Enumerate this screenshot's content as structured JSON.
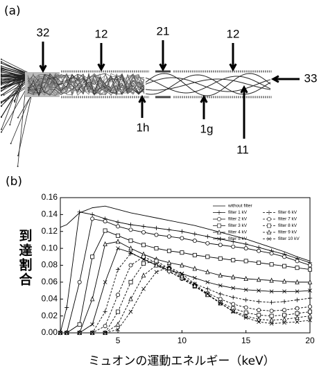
{
  "panel_a": {
    "label": "(a)",
    "callouts": [
      "32",
      "12",
      "21",
      "12",
      "33",
      "1h",
      "1g",
      "11"
    ]
  },
  "panel_b": {
    "label": "(b)"
  },
  "chart_data": {
    "type": "line",
    "xlabel": "ミュオンの運動エネルギー（keV）",
    "ylabel": "到達割合",
    "x": [
      0.5,
      1,
      2,
      3,
      4,
      5,
      6,
      7,
      8,
      9,
      10,
      11,
      12,
      13,
      14,
      15,
      16,
      17,
      18,
      19,
      20
    ],
    "xlim": [
      0.5,
      20
    ],
    "xticks": [
      5,
      10,
      15,
      20
    ],
    "ylim": [
      0,
      0.16
    ],
    "yticks": [
      {
        "value": 0,
        "label": "0.00"
      },
      0.02,
      0.04,
      0.06,
      0.08,
      {
        "value": 0.1,
        "label": "0.10"
      },
      0.12,
      0.14,
      0.16
    ],
    "legend": "upper right",
    "series": [
      {
        "name": "without filter",
        "color": "#000000",
        "marker": "none",
        "dash": false,
        "values": [
          0.125,
          0.128,
          0.142,
          0.148,
          0.15,
          0.146,
          0.142,
          0.139,
          0.136,
          0.133,
          0.13,
          0.127,
          0.123,
          0.119,
          0.115,
          0.111,
          0.106,
          0.101,
          0.096,
          0.09,
          0.085
        ]
      },
      {
        "name": "filter 1 kV",
        "color": "#000000",
        "marker": "plus",
        "dash": false,
        "values": [
          0,
          0.03,
          0.143,
          0.14,
          0.135,
          0.131,
          0.128,
          0.126,
          0.124,
          0.122,
          0.12,
          0.117,
          0.114,
          0.111,
          0.108,
          0.105,
          0.101,
          0.097,
          0.093,
          0.088,
          0.083
        ]
      },
      {
        "name": "filter 2 kV",
        "color": "#000000",
        "marker": "circle",
        "dash": false,
        "values": [
          0,
          0,
          0.06,
          0.135,
          0.132,
          0.126,
          0.122,
          0.119,
          0.116,
          0.114,
          0.112,
          0.109,
          0.106,
          0.104,
          0.102,
          0.1,
          0.097,
          0.094,
          0.09,
          0.085,
          0.08
        ]
      },
      {
        "name": "filter 3 kV",
        "color": "#000000",
        "marker": "square",
        "dash": false,
        "values": [
          0,
          0,
          0.01,
          0.09,
          0.121,
          0.115,
          0.109,
          0.104,
          0.1,
          0.097,
          0.095,
          0.092,
          0.09,
          0.088,
          0.086,
          0.085,
          0.083,
          0.081,
          0.079,
          0.077,
          0.075
        ]
      },
      {
        "name": "filter 4 kV",
        "color": "#000000",
        "marker": "triangle",
        "dash": false,
        "values": [
          0,
          0,
          0,
          0.04,
          0.105,
          0.108,
          0.1,
          0.093,
          0.087,
          0.083,
          0.08,
          0.076,
          0.072,
          0.068,
          0.066,
          0.064,
          0.063,
          0.062,
          0.061,
          0.06,
          0.06
        ]
      },
      {
        "name": "filter 5 kV",
        "color": "#000000",
        "marker": "x",
        "dash": false,
        "values": [
          0,
          0,
          0,
          0.01,
          0.06,
          0.1,
          0.095,
          0.087,
          0.08,
          0.074,
          0.07,
          0.065,
          0.06,
          0.056,
          0.053,
          0.051,
          0.05,
          0.049,
          0.049,
          0.049,
          0.05
        ]
      },
      {
        "name": "filter 6 kV",
        "color": "#000000",
        "marker": "plus",
        "dash": true,
        "values": [
          0,
          0,
          0,
          0,
          0.025,
          0.075,
          0.094,
          0.088,
          0.08,
          0.072,
          0.065,
          0.058,
          0.052,
          0.046,
          0.042,
          0.039,
          0.037,
          0.036,
          0.037,
          0.039,
          0.041
        ]
      },
      {
        "name": "filter 7 kV",
        "color": "#000000",
        "marker": "circle",
        "dash": true,
        "values": [
          0,
          0,
          0,
          0,
          0.008,
          0.045,
          0.08,
          0.09,
          0.083,
          0.073,
          0.064,
          0.055,
          0.047,
          0.04,
          0.034,
          0.03,
          0.027,
          0.026,
          0.027,
          0.029,
          0.031
        ]
      },
      {
        "name": "filter 8 kV",
        "color": "#000000",
        "marker": "square",
        "dash": true,
        "values": [
          0,
          0,
          0,
          0,
          0,
          0.025,
          0.06,
          0.082,
          0.085,
          0.076,
          0.065,
          0.055,
          0.045,
          0.036,
          0.029,
          0.024,
          0.021,
          0.02,
          0.021,
          0.023,
          0.025
        ]
      },
      {
        "name": "filter 9 kV",
        "color": "#000000",
        "marker": "triangle",
        "dash": true,
        "values": [
          0,
          0,
          0,
          0,
          0,
          0.01,
          0.04,
          0.068,
          0.08,
          0.077,
          0.067,
          0.056,
          0.045,
          0.035,
          0.026,
          0.02,
          0.016,
          0.015,
          0.016,
          0.018,
          0.02
        ]
      },
      {
        "name": "filter 10 kV",
        "color": "#000000",
        "marker": "x",
        "dash": true,
        "values": [
          0,
          0,
          0,
          0,
          0,
          0.004,
          0.025,
          0.052,
          0.072,
          0.078,
          0.07,
          0.058,
          0.046,
          0.035,
          0.025,
          0.018,
          0.013,
          0.011,
          0.012,
          0.013,
          0.015
        ]
      }
    ]
  }
}
